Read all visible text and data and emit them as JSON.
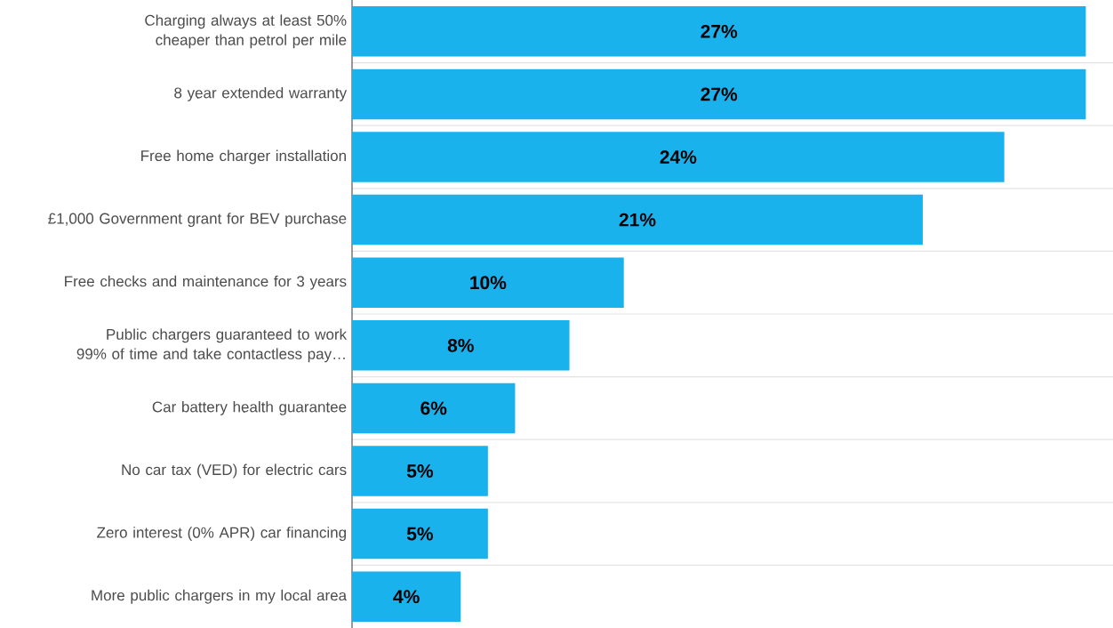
{
  "chart_data": {
    "type": "bar",
    "orientation": "horizontal",
    "categories": [
      "Charging always at least 50% cheaper than petrol per mile",
      "8 year extended warranty",
      "Free home charger installation",
      "£1,000 Government grant for BEV purchase",
      "Free checks and maintenance for 3 years",
      "Public chargers guaranteed to work 99% of time and take contactless pay…",
      "Car battery health guarantee",
      "No car tax (VED) for electric cars",
      "Zero interest (0% APR) car financing",
      "More public chargers in my local area"
    ],
    "values": [
      27,
      27,
      24,
      21,
      10,
      8,
      6,
      5,
      5,
      4
    ],
    "value_labels": [
      "27%",
      "27%",
      "24%",
      "21%",
      "10%",
      "8%",
      "6%",
      "5%",
      "5%",
      "4%"
    ],
    "color": "#1ab2ed",
    "xlim": [
      0,
      28
    ],
    "grid": "y"
  }
}
